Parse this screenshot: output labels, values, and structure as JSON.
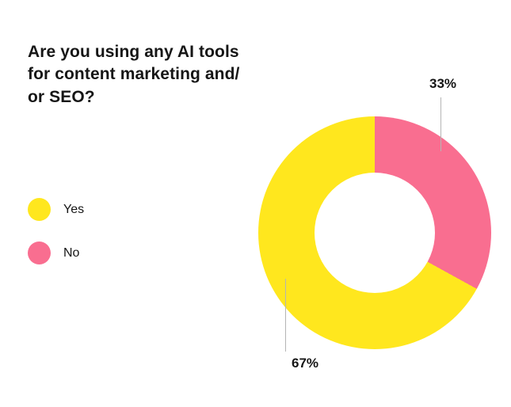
{
  "title": {
    "lines": [
      "Are you using any AI tools",
      "for content marketing and/",
      "or SEO?"
    ]
  },
  "legend": {
    "position": "left",
    "items": [
      {
        "label": "Yes",
        "color": "#FFE71E"
      },
      {
        "label": "No",
        "color": "#F96E90"
      }
    ]
  },
  "chart_data": {
    "type": "pie",
    "donut": true,
    "title": "Are you using any AI tools for content marketing and/or SEO?",
    "start_angle_deg": 0,
    "direction": "clockwise",
    "legend_position": "left",
    "slices": [
      {
        "label": "No",
        "value": 33,
        "color": "#F96E90",
        "annotation": "33%"
      },
      {
        "label": "Yes",
        "value": 67,
        "color": "#FFE71E",
        "annotation": "67%"
      }
    ]
  },
  "colors": {
    "background": "#ffffff",
    "text": "#161616",
    "callout_line": "#b5b5b5",
    "donut_hole": "#ffffff"
  }
}
